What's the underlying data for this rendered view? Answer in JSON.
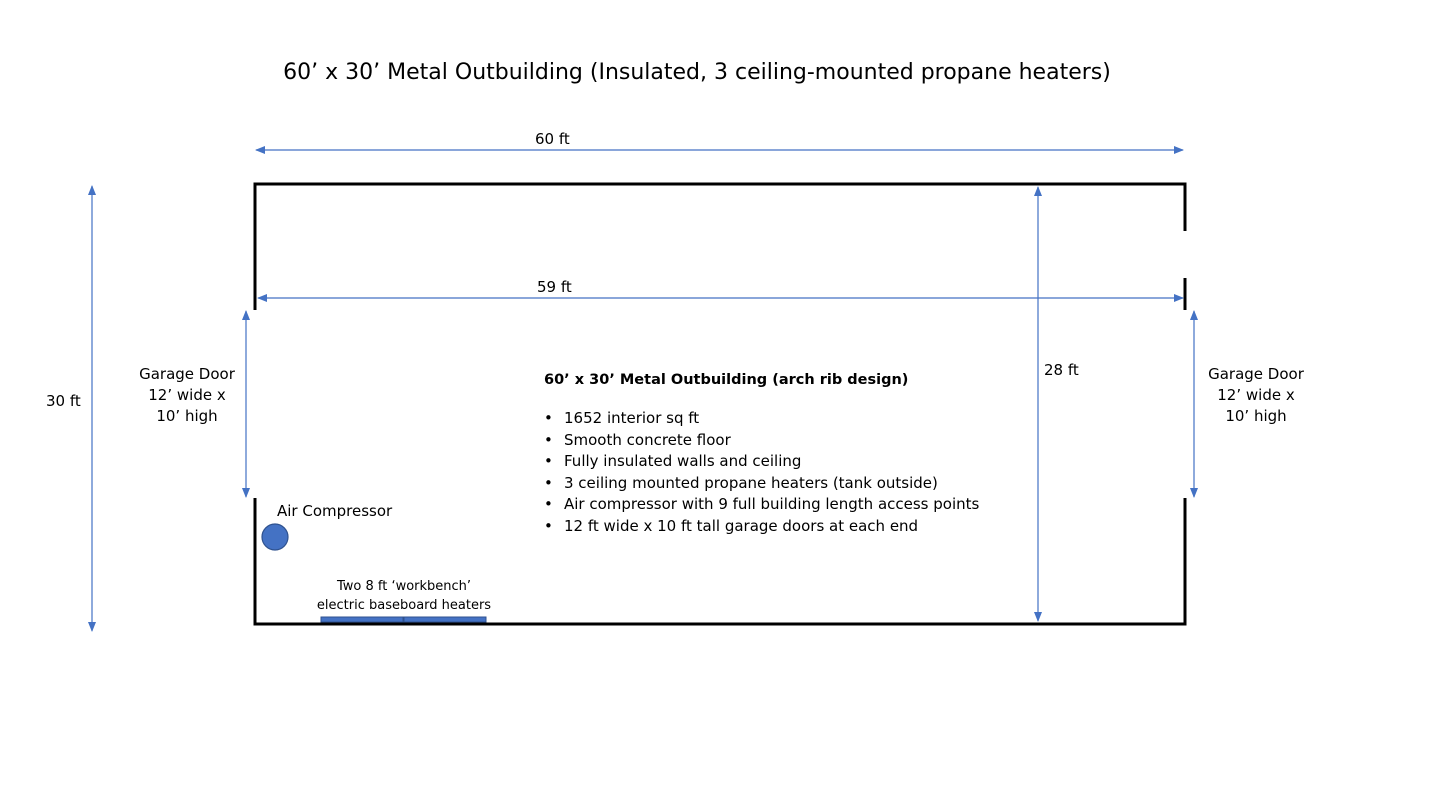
{
  "title": "60’ x 30’ Metal Outbuilding (Insulated, 3 ceiling-mounted propane heaters)",
  "dimensions": {
    "overall_length": "60 ft",
    "interior_length": "59 ft",
    "overall_width": "30 ft",
    "interior_width": "28 ft"
  },
  "doors": {
    "left": {
      "lines": [
        "Garage Door",
        "12’ wide x",
        "10’ high"
      ]
    },
    "right": {
      "lines": [
        "Garage Door",
        "12’ wide x",
        "10’ high"
      ]
    }
  },
  "equipment": {
    "air_compressor": "Air Compressor",
    "baseboard_heaters": [
      "Two 8 ft ‘workbench’",
      "electric baseboard heaters"
    ]
  },
  "notes": {
    "heading": "60’ x 30’ Metal Outbuilding (arch rib design)",
    "items": [
      "1652 interior sq ft",
      "Smooth concrete floor",
      "Fully insulated walls and ceiling",
      "3 ceiling mounted propane heaters (tank outside)",
      "Air compressor with 9 full building length access points",
      "12 ft wide x 10 ft tall garage doors at each end"
    ]
  },
  "colors": {
    "wall": "#000000",
    "dimension_line": "#4472c4",
    "equipment_fill": "#4472c4",
    "equipment_stroke": "#2f528f"
  }
}
